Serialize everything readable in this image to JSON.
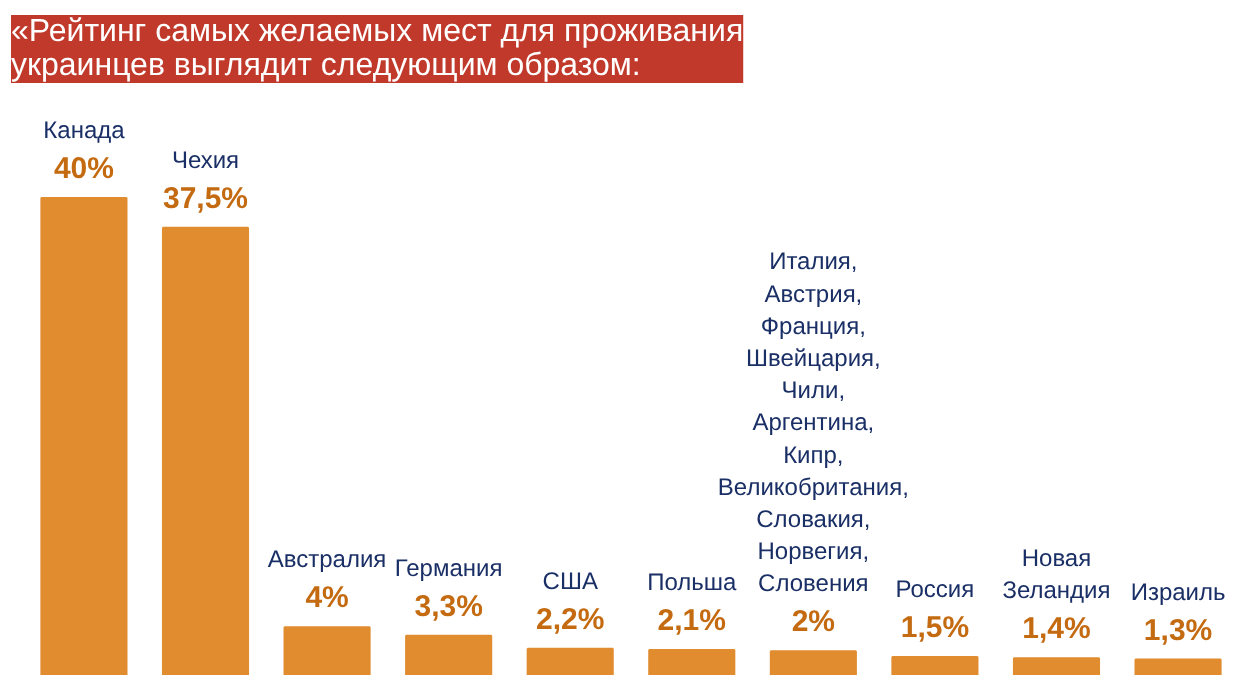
{
  "chart_data": {
    "type": "bar",
    "title": "«Рейтинг самых желаемых мест для проживания украинцев выглядит следующим образом:",
    "categories": [
      "Канада",
      "Чехия",
      "Австралия",
      "Германия",
      "США",
      "Польша",
      "Италия, Австрия, Франция, Швейцария, Чили, Аргентина, Кипр, Великобритания, Словакия, Норвегия, Словения",
      "Россия",
      "Новая Зеландия",
      "Израиль"
    ],
    "values": [
      40,
      37.5,
      4,
      3.3,
      2.2,
      2.1,
      2,
      1.5,
      1.4,
      1.3
    ],
    "value_labels": [
      "40%",
      "37,5%",
      "4%",
      "3,3%",
      "2,2%",
      "2,1%",
      "2%",
      "1,5%",
      "1,4%",
      "1,3%"
    ],
    "color": "#e08c2f"
  }
}
